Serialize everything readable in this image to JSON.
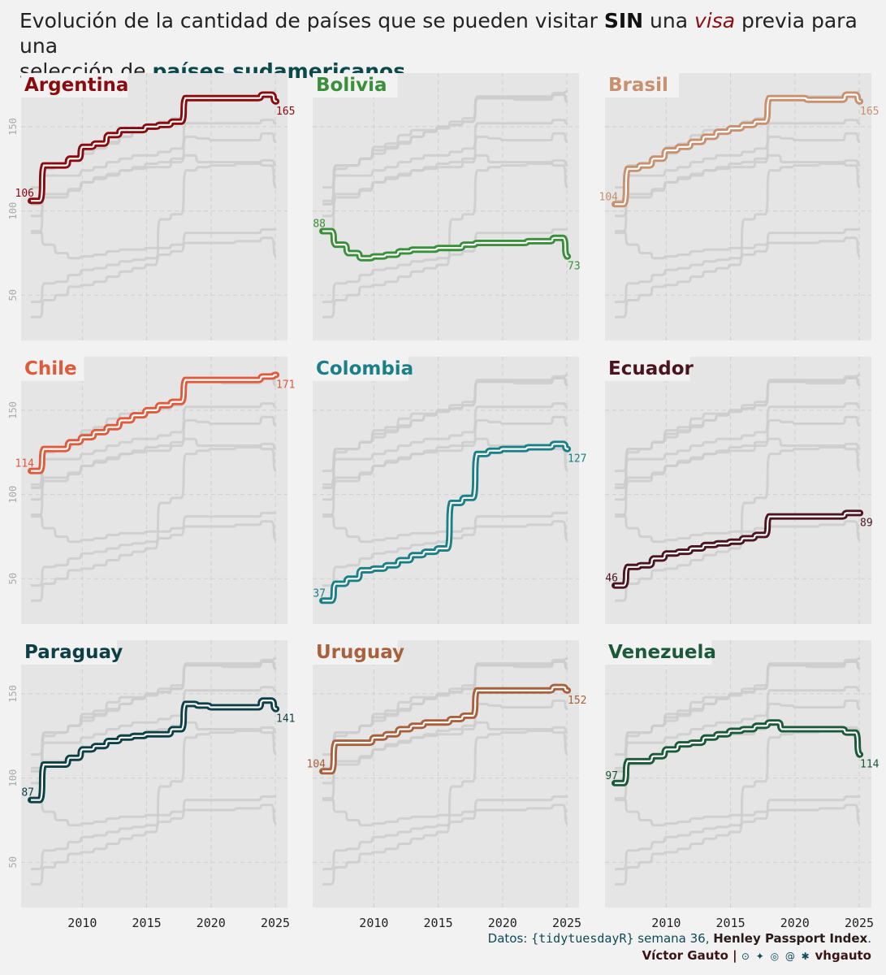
{
  "title": {
    "part1": "Evolución de la cantidad de países que se pueden visitar ",
    "sin": "SIN",
    "part2": " una ",
    "visa": "visa",
    "part3": " previa para una",
    "part4": "selección de ",
    "paises": "países sudamericanos"
  },
  "caption": {
    "datos": "Datos: ",
    "source": "{tidytuesdayR}",
    "semana": " semana 36, ",
    "index": "Henley Passport Index",
    "dot": ".",
    "author": "Víctor Gauto",
    "sep": " | ",
    "icons": "⊙ ✦ ◎ @ ✱",
    "handle": "vhgauto"
  },
  "chart_data": {
    "type": "line",
    "x_range": [
      2006,
      2025
    ],
    "y_range": [
      27,
      176
    ],
    "x_ticks": [
      2010,
      2015,
      2020,
      2025
    ],
    "x_tick_labels": [
      "2010",
      "2015",
      "2020",
      "2025"
    ],
    "y_ticks": [
      50,
      100,
      150
    ],
    "y_tick_labels": [
      "50",
      "100",
      "150"
    ],
    "grid": true,
    "years": [
      2006,
      2007,
      2008,
      2009,
      2010,
      2011,
      2012,
      2013,
      2014,
      2015,
      2016,
      2017,
      2018,
      2019,
      2020,
      2021,
      2022,
      2023,
      2024,
      2025
    ],
    "series": [
      {
        "name": "Argentina",
        "color": "#8b0a0d",
        "start_label": "106",
        "end_label": "165",
        "values": [
          106,
          127,
          127,
          131,
          138,
          140,
          145,
          148,
          148,
          150,
          151,
          153,
          167,
          167,
          167,
          167,
          167,
          167,
          169,
          165
        ]
      },
      {
        "name": "Bolivia",
        "color": "#3a8f3a",
        "start_label": "88",
        "end_label": "73",
        "values": [
          88,
          80,
          75,
          72,
          73,
          74,
          76,
          77,
          77,
          78,
          78,
          80,
          81,
          81,
          81,
          81,
          82,
          82,
          84,
          73
        ]
      },
      {
        "name": "Brasil",
        "color": "#c8906e",
        "start_label": "104",
        "end_label": "165",
        "values": [
          104,
          125,
          127,
          131,
          136,
          138,
          141,
          144,
          147,
          149,
          151,
          153,
          167,
          167,
          167,
          166,
          166,
          166,
          169,
          165
        ]
      },
      {
        "name": "Chile",
        "color": "#e05a3c",
        "start_label": "114",
        "end_label": "171",
        "values": [
          114,
          127,
          127,
          131,
          134,
          137,
          140,
          144,
          147,
          150,
          153,
          155,
          168,
          168,
          168,
          168,
          168,
          168,
          170,
          171
        ]
      },
      {
        "name": "Colombia",
        "color": "#1a7f87",
        "start_label": "37",
        "end_label": "127",
        "values": [
          37,
          47,
          50,
          55,
          56,
          58,
          61,
          64,
          66,
          68,
          95,
          98,
          124,
          126,
          127,
          127,
          128,
          128,
          130,
          127
        ]
      },
      {
        "name": "Ecuador",
        "color": "#4a1520",
        "start_label": "46",
        "end_label": "89",
        "values": [
          46,
          57,
          58,
          62,
          65,
          66,
          68,
          70,
          71,
          72,
          74,
          76,
          87,
          87,
          87,
          87,
          87,
          87,
          89,
          89
        ]
      },
      {
        "name": "Paraguay",
        "color": "#0d3f47",
        "start_label": "87",
        "end_label": "141",
        "values": [
          87,
          108,
          108,
          112,
          117,
          119,
          122,
          124,
          125,
          126,
          126,
          129,
          144,
          143,
          142,
          142,
          142,
          142,
          146,
          141
        ]
      },
      {
        "name": "Uruguay",
        "color": "#a8613c",
        "start_label": "104",
        "end_label": "152",
        "values": [
          104,
          121,
          121,
          121,
          124,
          126,
          129,
          131,
          133,
          133,
          135,
          137,
          152,
          152,
          152,
          152,
          152,
          152,
          154,
          152
        ]
      },
      {
        "name": "Venezuela",
        "color": "#1a5a38",
        "start_label": "97",
        "end_label": "114",
        "values": [
          97,
          110,
          110,
          113,
          117,
          120,
          121,
          124,
          126,
          128,
          129,
          131,
          133,
          129,
          129,
          129,
          129,
          129,
          127,
          114
        ]
      }
    ]
  }
}
